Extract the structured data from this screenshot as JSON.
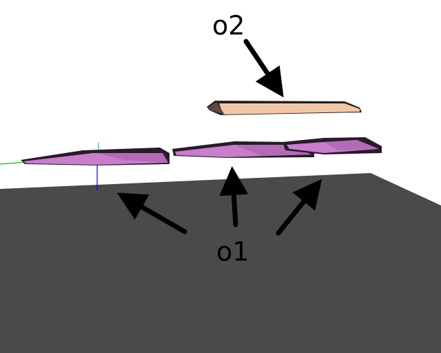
{
  "labels": {
    "o1": "o1",
    "o2": "o2"
  },
  "colors": {
    "background": "#ffffff",
    "ground_plane": "#4a4a4a",
    "object_o1": "#c77ecb",
    "object_o1_edge": "#2a1a2a",
    "object_o2": "#f2c7a8",
    "object_o2_edge": "#2a1e18",
    "arrow": "#000000",
    "axis_x": "#00cc00",
    "axis_y": "#00cccc",
    "axis_z": "#0000ff"
  }
}
